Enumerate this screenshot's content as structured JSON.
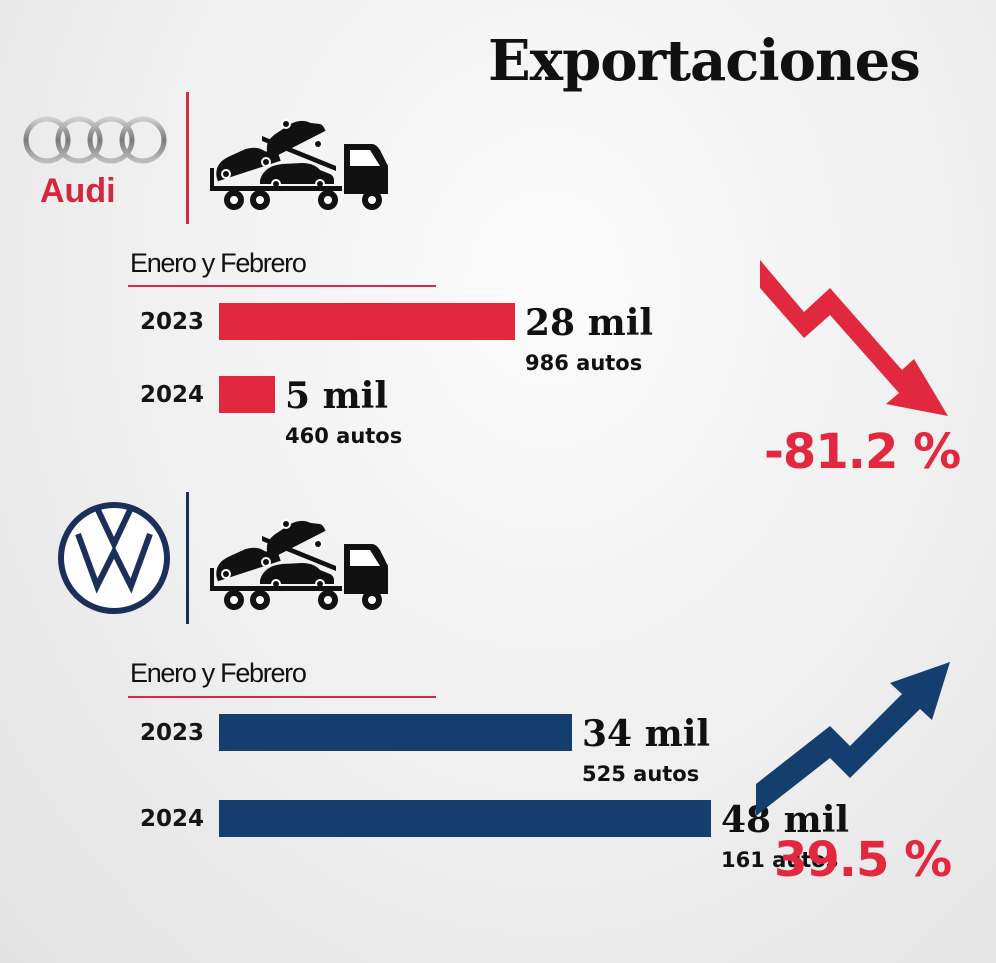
{
  "title": "Exportaciones",
  "colors": {
    "audi": "#e1283f",
    "vw": "#143e6e",
    "accent_line": "#d62b45"
  },
  "chart_data": [
    {
      "type": "bar",
      "brand": "Audi",
      "period_label": "Enero y Febrero",
      "categories": [
        "2023",
        "2024"
      ],
      "values": [
        28986,
        5460
      ],
      "value_labels": [
        "28 mil",
        "5 mil"
      ],
      "sub_labels": [
        "986 autos",
        "460 autos"
      ],
      "change_label": "-81.2 %",
      "trend": "down",
      "xlim": [
        0,
        49000
      ]
    },
    {
      "type": "bar",
      "brand": "Volkswagen",
      "period_label": "Enero y Febrero",
      "categories": [
        "2023",
        "2024"
      ],
      "values": [
        34525,
        48161
      ],
      "value_labels": [
        "34 mil",
        "48 mil"
      ],
      "sub_labels": [
        "525 autos",
        "161 autos"
      ],
      "change_label": "39.5 %",
      "trend": "up",
      "xlim": [
        0,
        49000
      ]
    }
  ],
  "audi_logo": {
    "text": "Audi",
    "icon": "audi-rings-logo"
  },
  "vw_logo": {
    "icon": "vw-logo"
  }
}
